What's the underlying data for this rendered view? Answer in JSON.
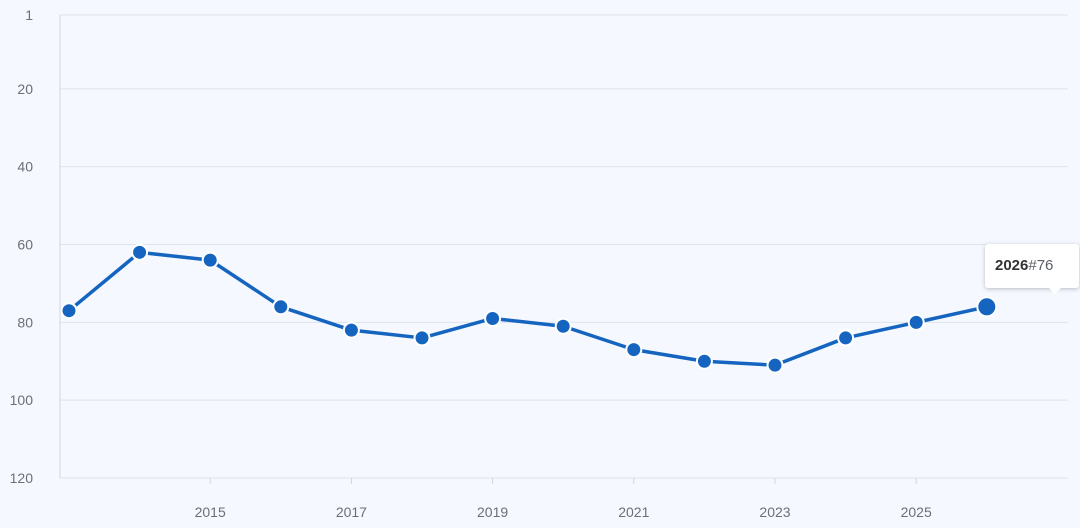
{
  "chart_data": {
    "type": "line",
    "x": [
      2013,
      2014,
      2015,
      2016,
      2017,
      2018,
      2019,
      2020,
      2021,
      2022,
      2023,
      2024,
      2025,
      2026
    ],
    "series": [
      {
        "values": [
          77,
          62,
          64,
          76,
          82,
          84,
          79,
          81,
          87,
          90,
          91,
          84,
          80,
          76
        ]
      }
    ],
    "x_ticks": [
      "2015",
      "2017",
      "2019",
      "2021",
      "2023",
      "2025"
    ],
    "y_ticks": [
      "1",
      "20",
      "40",
      "60",
      "80",
      "100",
      "120"
    ],
    "ylim": [
      1,
      120
    ],
    "y_inverted": true,
    "grid": true,
    "tooltip": {
      "year": "2026",
      "separator": "#",
      "value": "76"
    },
    "colors": {
      "line": "#1565c0",
      "grid": "#dde3ec",
      "axis": "#cfd6e0",
      "background": "#f5f9ff"
    }
  }
}
